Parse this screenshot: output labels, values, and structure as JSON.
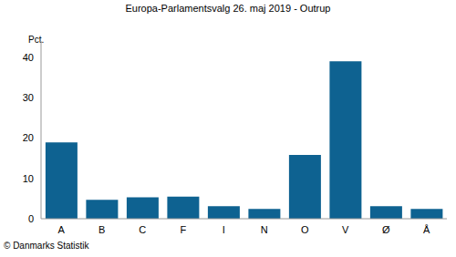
{
  "chart_data": {
    "type": "bar",
    "title": "Europa-Parlamentsvalg 26. maj 2019 - Outrup",
    "y_label": "Pct.",
    "source": "© Danmarks Statistik",
    "categories": [
      "A",
      "B",
      "C",
      "F",
      "I",
      "N",
      "O",
      "V",
      "Ø",
      "Å"
    ],
    "values": [
      18.9,
      4.7,
      5.3,
      5.5,
      3.1,
      2.4,
      15.8,
      39.0,
      3.1,
      2.4
    ],
    "color": "#0e6291",
    "ylim": [
      0,
      44
    ],
    "yticks": [
      0,
      10,
      20,
      30,
      40
    ],
    "grid": false
  }
}
